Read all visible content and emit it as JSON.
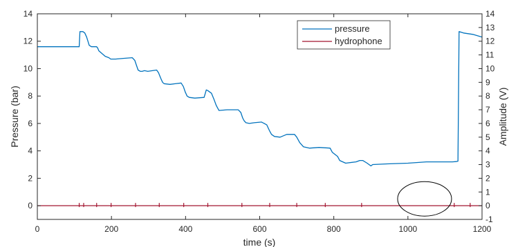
{
  "chart_data": {
    "type": "line",
    "title": "",
    "xlabel": "time (s)",
    "ylabel_left": "Pressure (bar)",
    "ylabel_right": "Amplitude (V)",
    "xlim": [
      0,
      1200
    ],
    "ylim_left": [
      -1,
      14
    ],
    "ylim_right": [
      -1,
      14
    ],
    "x_ticks": [
      "0",
      "200",
      "400",
      "600",
      "800",
      "1000",
      "1200"
    ],
    "y_ticks_left": [
      "0",
      "2",
      "4",
      "6",
      "8",
      "10",
      "12",
      "14"
    ],
    "y_ticks_right": [
      "-1",
      "0",
      "1",
      "2",
      "3",
      "4",
      "5",
      "6",
      "7",
      "8",
      "9",
      "10",
      "11",
      "12",
      "13",
      "14"
    ],
    "grid": false,
    "legend_position": "top-right",
    "series": [
      {
        "name": "pressure",
        "axis": "left",
        "color": "#0072BD",
        "x": [
          0,
          113,
          115,
          123,
          128,
          133,
          140,
          146,
          160,
          163,
          166,
          183,
          193,
          198,
          204,
          207,
          211,
          232,
          256,
          263,
          268,
          272,
          278,
          283,
          289,
          298,
          322,
          327,
          333,
          338,
          342,
          358,
          388,
          394,
          399,
          404,
          410,
          425,
          450,
          456,
          460,
          470,
          476,
          483,
          490,
          512,
          542,
          549,
          554,
          558,
          563,
          572,
          585,
          605,
          619,
          626,
          632,
          640,
          655,
          673,
          694,
          700,
          708,
          718,
          735,
          760,
          790,
          796,
          810,
          816,
          832,
          860,
          870,
          878,
          890,
          900,
          905,
          945,
          1000,
          1050,
          1100,
          1120,
          1130,
          1135,
          1138,
          1150,
          1175,
          1200
        ],
        "y": [
          11.6,
          11.6,
          12.7,
          12.7,
          12.6,
          12.3,
          11.7,
          11.6,
          11.6,
          11.5,
          11.3,
          10.9,
          10.8,
          10.7,
          10.7,
          10.7,
          10.7,
          10.75,
          10.8,
          10.6,
          10.2,
          9.9,
          9.8,
          9.8,
          9.85,
          9.8,
          9.9,
          9.7,
          9.3,
          9.0,
          8.9,
          8.85,
          8.95,
          8.7,
          8.3,
          8.0,
          7.9,
          7.85,
          7.9,
          8.45,
          8.4,
          8.2,
          7.8,
          7.3,
          6.95,
          7.0,
          7.0,
          6.8,
          6.4,
          6.2,
          6.05,
          6.0,
          6.05,
          6.1,
          5.9,
          5.5,
          5.2,
          5.05,
          5.0,
          5.2,
          5.2,
          5.0,
          4.6,
          4.3,
          4.2,
          4.25,
          4.2,
          3.9,
          3.6,
          3.3,
          3.1,
          3.2,
          3.3,
          3.3,
          3.1,
          2.9,
          3.0,
          3.05,
          3.1,
          3.2,
          3.2,
          3.2,
          3.22,
          3.25,
          12.7,
          12.6,
          12.5,
          12.3
        ]
      },
      {
        "name": "hydrophone",
        "axis": "right",
        "color": "#A2142F",
        "x": [
          0,
          1200
        ],
        "y": [
          0,
          0
        ],
        "spikes_x": [
          113,
          125,
          160,
          199,
          265,
          329,
          395,
          460,
          552,
          627,
          700,
          777,
          875,
          1125,
          1168
        ]
      }
    ],
    "annotations": [
      {
        "type": "ellipse",
        "center_x": 1045,
        "center_y_right_axis": 0.5
      }
    ]
  }
}
